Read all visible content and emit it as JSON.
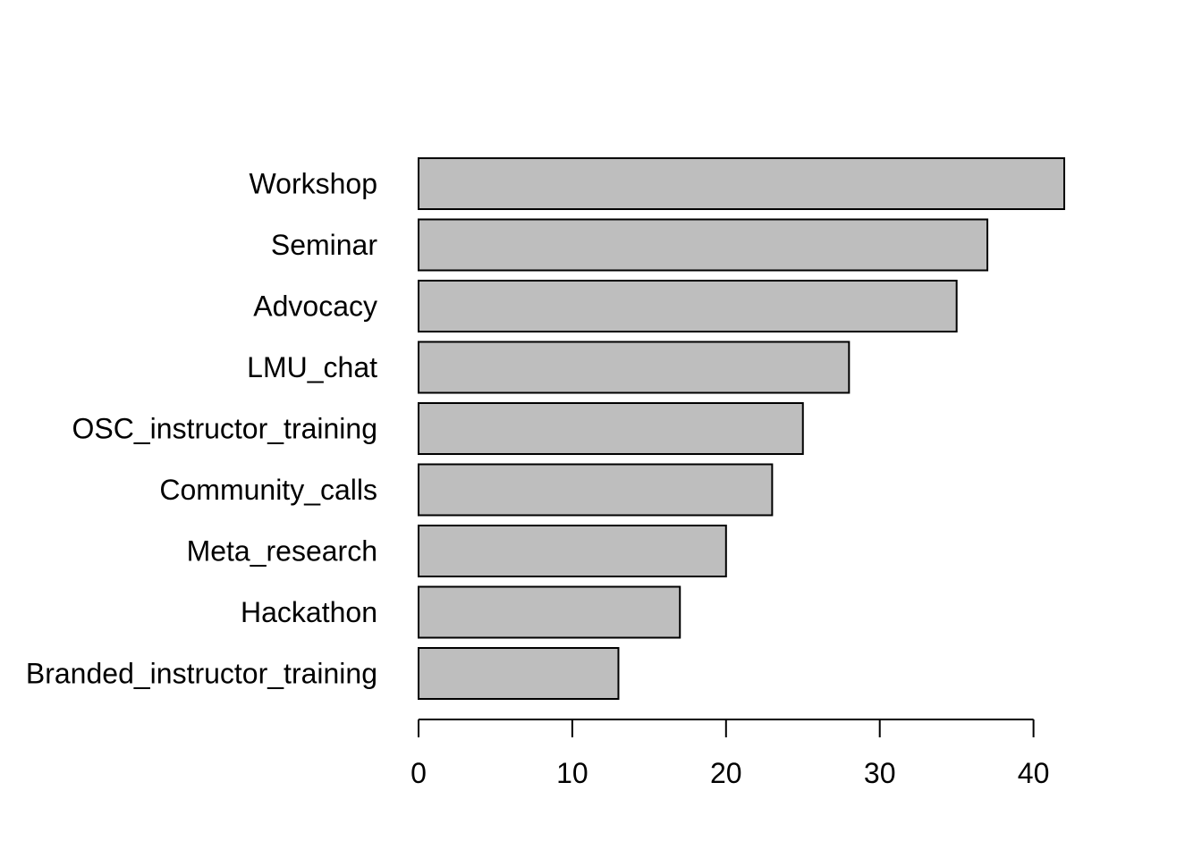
{
  "chart_data": {
    "type": "bar",
    "orientation": "horizontal",
    "categories": [
      "Workshop",
      "Seminar",
      "Advocacy",
      "LMU_chat",
      "OSC_instructor_training",
      "Community_calls",
      "Meta_research",
      "Hackathon",
      "Branded_instructor_training"
    ],
    "values": [
      42,
      37,
      35,
      28,
      25,
      23,
      20,
      17,
      13
    ],
    "xlim": [
      0,
      40
    ],
    "xticks": [
      0,
      10,
      20,
      30,
      40
    ],
    "title": "",
    "xlabel": "",
    "ylabel": "",
    "bar_color": "#bebebe",
    "border_color": "#000000",
    "grid": false,
    "legend": "none"
  }
}
